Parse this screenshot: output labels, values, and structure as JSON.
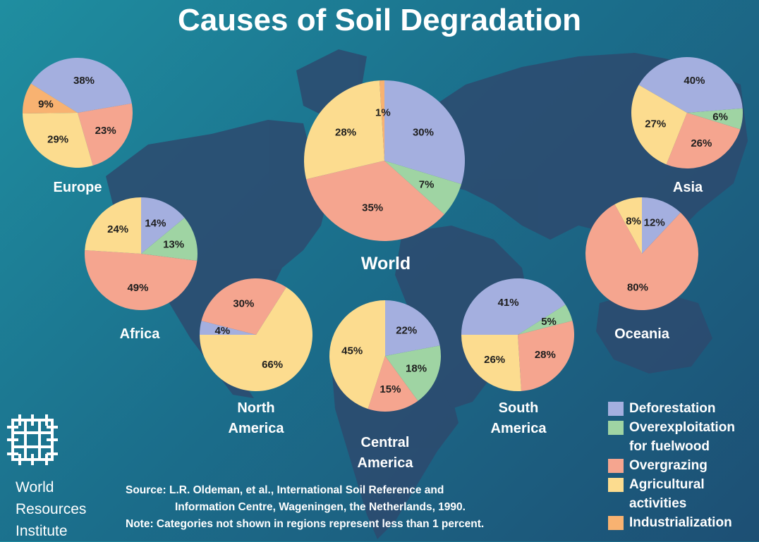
{
  "header": {
    "title": "Causes of Soil Degradation"
  },
  "colors": {
    "Deforestation": "#a4afdf",
    "Overexploitation for fuelwood": "#9fd4a3",
    "Overgrazing": "#f5a58f",
    "Agricultural activities": "#fcdc8f",
    "Industrialization": "#f8b271"
  },
  "chart_data": {
    "type": "pie",
    "title": "Causes of Soil Degradation",
    "categories": [
      "Deforestation",
      "Overexploitation for fuelwood",
      "Overgrazing",
      "Agricultural activities",
      "Industrialization"
    ],
    "pies": [
      {
        "region": "Europe",
        "values": {
          "Deforestation": 38,
          "Overgrazing": 23,
          "Agricultural activities": 29,
          "Industrialization": 9
        }
      },
      {
        "region": "World",
        "values": {
          "Deforestation": 30,
          "Overexploitation for fuelwood": 7,
          "Overgrazing": 35,
          "Agricultural activities": 28,
          "Industrialization": 1
        }
      },
      {
        "region": "Asia",
        "values": {
          "Deforestation": 40,
          "Overexploitation for fuelwood": 6,
          "Overgrazing": 26,
          "Agricultural activities": 27
        }
      },
      {
        "region": "Africa",
        "values": {
          "Deforestation": 14,
          "Overexploitation for fuelwood": 13,
          "Overgrazing": 49,
          "Agricultural activities": 24
        }
      },
      {
        "region": "Oceania",
        "values": {
          "Deforestation": 12,
          "Overgrazing": 80,
          "Agricultural activities": 8
        }
      },
      {
        "region": "North America",
        "values": {
          "Deforestation": 4,
          "Overgrazing": 30,
          "Agricultural activities": 66
        }
      },
      {
        "region": "Central America",
        "values": {
          "Deforestation": 22,
          "Overexploitation for fuelwood": 18,
          "Overgrazing": 15,
          "Agricultural activities": 45
        }
      },
      {
        "region": "South America",
        "values": {
          "Deforestation": 41,
          "Overexploitation for fuelwood": 5,
          "Overgrazing": 28,
          "Agricultural activities": 26
        }
      }
    ]
  },
  "legend": {
    "items": [
      "Deforestation",
      "Overexploitation for fuelwood",
      "Overgrazing",
      "Agricultural activities",
      "Industrialization"
    ]
  },
  "source": {
    "line1": "Source: L.R. Oldeman, et al., International Soil Reference and",
    "line2": "Information Centre, Wageningen, the Netherlands, 1990.",
    "note": "Note: Categories not shown in regions represent less than 1 percent."
  },
  "logo": {
    "line1": "World",
    "line2": "Resources",
    "line3": "Institute"
  }
}
